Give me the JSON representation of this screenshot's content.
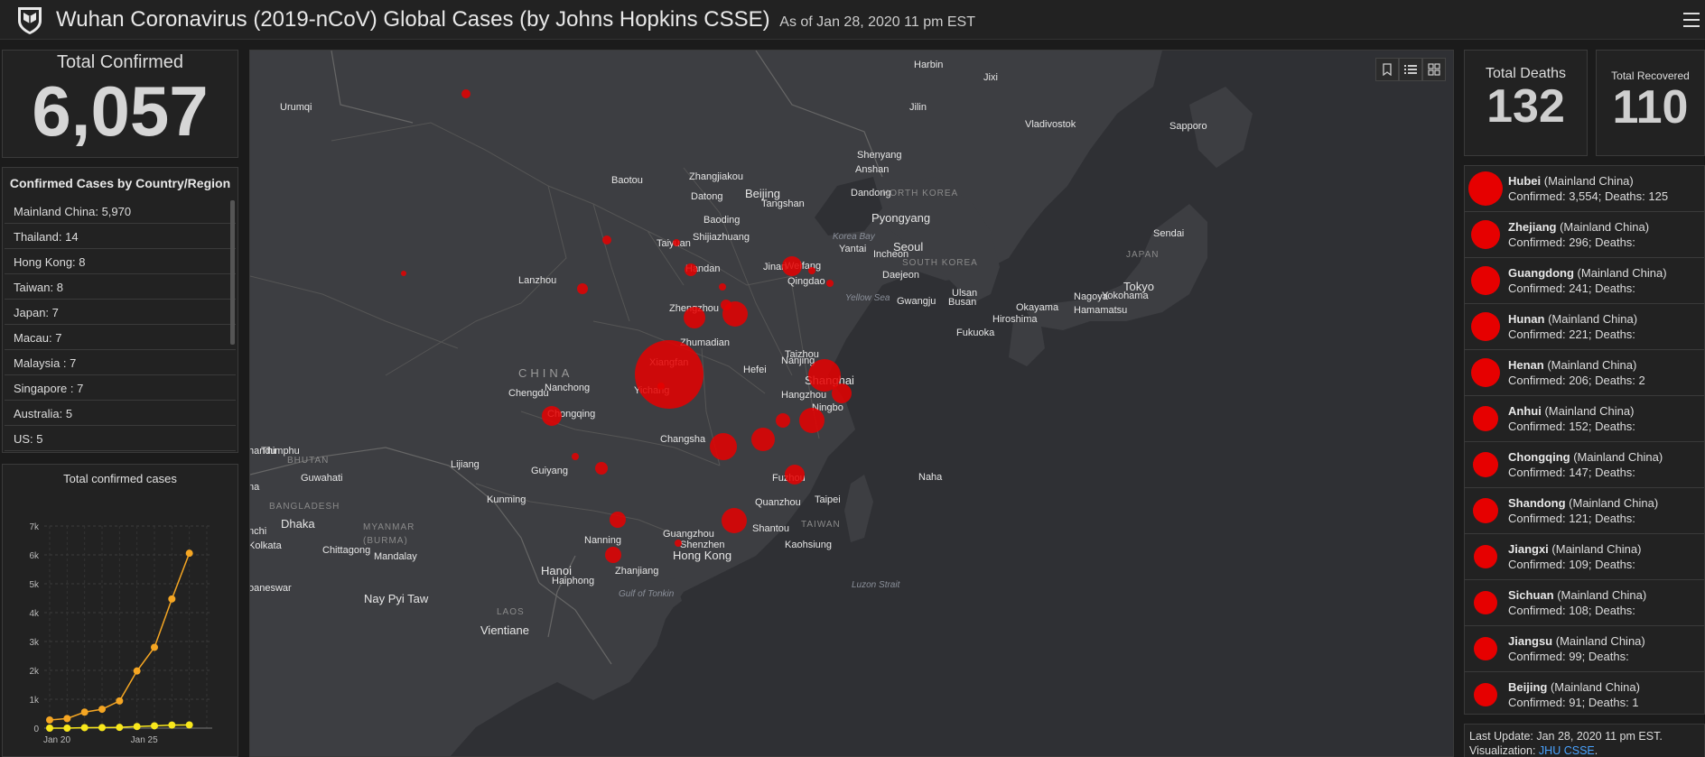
{
  "header": {
    "title": "Wuhan Coronavirus (2019-nCoV) Global Cases (by Johns Hopkins CSSE)",
    "as_of": "As of Jan 28, 2020 11 pm EST"
  },
  "total_confirmed": {
    "label": "Total Confirmed",
    "value": "6,057"
  },
  "country_panel": {
    "title": "Confirmed Cases by Country/Region",
    "rows": [
      {
        "name": "Mainland China",
        "value": "5,970"
      },
      {
        "name": "Thailand",
        "value": "14"
      },
      {
        "name": "Hong Kong",
        "value": "8"
      },
      {
        "name": "Taiwan",
        "value": "8"
      },
      {
        "name": "Japan",
        "value": "7"
      },
      {
        "name": "Macau",
        "value": "7"
      },
      {
        "name": "Malaysia ",
        "value": "7"
      },
      {
        "name": "Singapore ",
        "value": "7"
      },
      {
        "name": "Australia",
        "value": "5"
      },
      {
        "name": "US",
        "value": "5"
      }
    ]
  },
  "chart_panel": {
    "title": "Total confirmed cases"
  },
  "chart_data": {
    "type": "line",
    "title": "Total confirmed cases",
    "x_tick_labels": [
      "Jan 20",
      "Jan 25"
    ],
    "y_tick_labels": [
      "0",
      "1k",
      "2k",
      "3k",
      "4k",
      "5k",
      "6k",
      "7k"
    ],
    "ylim": [
      0,
      7000
    ],
    "x": [
      "Jan 21",
      "Jan 22",
      "Jan 23",
      "Jan 24",
      "Jan 25",
      "Jan 26",
      "Jan 27",
      "Jan 28",
      "Jan 29",
      "Jan 30"
    ],
    "series": [
      {
        "color": "#f5a623",
        "values": [
          282,
          332,
          555,
          653,
          941,
          1979,
          2798,
          4474,
          6057,
          null
        ]
      },
      {
        "color": "#f8e71c",
        "values": [
          0,
          0,
          17,
          18,
          26,
          56,
          80,
          107,
          110,
          null
        ]
      }
    ]
  },
  "map": {
    "country_label": "CHINA",
    "labels": [
      {
        "t": "Harbin"
      },
      {
        "t": "Jixi"
      },
      {
        "t": "Urumqi"
      },
      {
        "t": "Jilin"
      },
      {
        "t": "Vladivostok"
      },
      {
        "t": "Sapporo"
      },
      {
        "t": "Shenyang"
      },
      {
        "t": "Anshan"
      },
      {
        "t": "Baotou"
      },
      {
        "t": "Zhangjiakou"
      },
      {
        "t": "Beijing"
      },
      {
        "t": "Tangshan"
      },
      {
        "t": "Datong"
      },
      {
        "t": "Dandong"
      },
      {
        "t": "NORTH KOREA"
      },
      {
        "t": "Pyongyang"
      },
      {
        "t": "Baoding"
      },
      {
        "t": "Shijiazhuang"
      },
      {
        "t": "Taiyuan"
      },
      {
        "t": "Yantai"
      },
      {
        "t": "Seoul"
      },
      {
        "t": "Incheon"
      },
      {
        "t": "SOUTH KOREA"
      },
      {
        "t": "Sendai"
      },
      {
        "t": "JAPAN"
      },
      {
        "t": "Jinan"
      },
      {
        "t": "Weifang"
      },
      {
        "t": "Handan"
      },
      {
        "t": "Qingdao"
      },
      {
        "t": "Lanzhou"
      },
      {
        "t": "Daejeon"
      },
      {
        "t": "Tokyo"
      },
      {
        "t": "Nagoya"
      },
      {
        "t": "Yokohama"
      },
      {
        "t": "Hamamatsu"
      },
      {
        "t": "Ulsan"
      },
      {
        "t": "Busan"
      },
      {
        "t": "Gwangju"
      },
      {
        "t": "Okayama"
      },
      {
        "t": "Hiroshima"
      },
      {
        "t": "Fukuoka"
      },
      {
        "t": "Zhengzhou"
      },
      {
        "t": "Zhumadian"
      },
      {
        "t": "Taizhou"
      },
      {
        "t": "Nanjing"
      },
      {
        "t": "Xiangfan"
      },
      {
        "t": "Hefei"
      },
      {
        "t": "Shanghai"
      },
      {
        "t": "Nanchong"
      },
      {
        "t": "Chengdu"
      },
      {
        "t": "Yichang"
      },
      {
        "t": "Hangzhou"
      },
      {
        "t": "Ningbo"
      },
      {
        "t": "Chongqing"
      },
      {
        "t": "Changsha"
      },
      {
        "t": "Thimphu"
      },
      {
        "t": "BHUTAN"
      },
      {
        "t": "Lijiang"
      },
      {
        "t": "Guwahati"
      },
      {
        "t": "Guiyang"
      },
      {
        "t": "Fuzhou"
      },
      {
        "t": "Naha"
      },
      {
        "t": "BANGLADESH"
      },
      {
        "t": "Kunming"
      },
      {
        "t": "Quanzhou"
      },
      {
        "t": "Taipei"
      },
      {
        "t": "Dhaka"
      },
      {
        "t": "MYANMAR"
      },
      {
        "t": "(BURMA)"
      },
      {
        "t": "Nanning"
      },
      {
        "t": "Shantou"
      },
      {
        "t": "TAIWAN"
      },
      {
        "t": "Guangzhou"
      },
      {
        "t": "Shenzhen"
      },
      {
        "t": "Hong Kong"
      },
      {
        "t": "Kolkata"
      },
      {
        "t": "Chittagong"
      },
      {
        "t": "Mandalay"
      },
      {
        "t": "Kaohsiung"
      },
      {
        "t": "Hanoi"
      },
      {
        "t": "Zhanjiang"
      },
      {
        "t": "Haiphong"
      },
      {
        "t": "Nay Pyi Taw"
      },
      {
        "t": "LAOS"
      },
      {
        "t": "Vientiane"
      },
      {
        "t": "handu"
      },
      {
        "t": "nchi"
      },
      {
        "t": "na"
      },
      {
        "t": "oaneswar"
      }
    ],
    "water_labels": [
      "Yellow Sea",
      "Korea Bay",
      "Gulf of Tonkin",
      "Luzon Strait"
    ],
    "bubble_color": "#e60000"
  },
  "map_tools": [
    "bookmark-icon",
    "list-icon",
    "grid-icon"
  ],
  "total_deaths": {
    "label": "Total Deaths",
    "value": "132"
  },
  "total_recovered": {
    "label": "Total Recovered",
    "value": "110"
  },
  "regions": [
    {
      "name": "Hubei",
      "region": "(Mainland China)",
      "detail": "Confirmed: 3,554; Deaths: 125"
    },
    {
      "name": "Zhejiang",
      "region": "(Mainland China)",
      "detail": "Confirmed: 296; Deaths:"
    },
    {
      "name": "Guangdong",
      "region": "(Mainland China)",
      "detail": "Confirmed: 241; Deaths:"
    },
    {
      "name": "Hunan",
      "region": "(Mainland China)",
      "detail": "Confirmed: 221; Deaths:"
    },
    {
      "name": "Henan",
      "region": "(Mainland China)",
      "detail": "Confirmed: 206; Deaths: 2"
    },
    {
      "name": "Anhui",
      "region": "(Mainland China)",
      "detail": "Confirmed: 152; Deaths:"
    },
    {
      "name": "Chongqing",
      "region": "(Mainland China)",
      "detail": "Confirmed: 147; Deaths:"
    },
    {
      "name": "Shandong",
      "region": "(Mainland China)",
      "detail": "Confirmed: 121; Deaths:"
    },
    {
      "name": "Jiangxi",
      "region": "(Mainland China)",
      "detail": "Confirmed: 109; Deaths:"
    },
    {
      "name": "Sichuan",
      "region": "(Mainland China)",
      "detail": "Confirmed: 108; Deaths:"
    },
    {
      "name": "Jiangsu",
      "region": "(Mainland China)",
      "detail": "Confirmed: 99; Deaths:"
    },
    {
      "name": "Beijing",
      "region": "(Mainland China)",
      "detail": "Confirmed: 91; Deaths: 1"
    }
  ],
  "footer": {
    "last_update": "Last Update: Jan 28, 2020 11 pm EST.",
    "visualization_label": "Visualization:",
    "visualization_link": "JHU CSSE"
  }
}
